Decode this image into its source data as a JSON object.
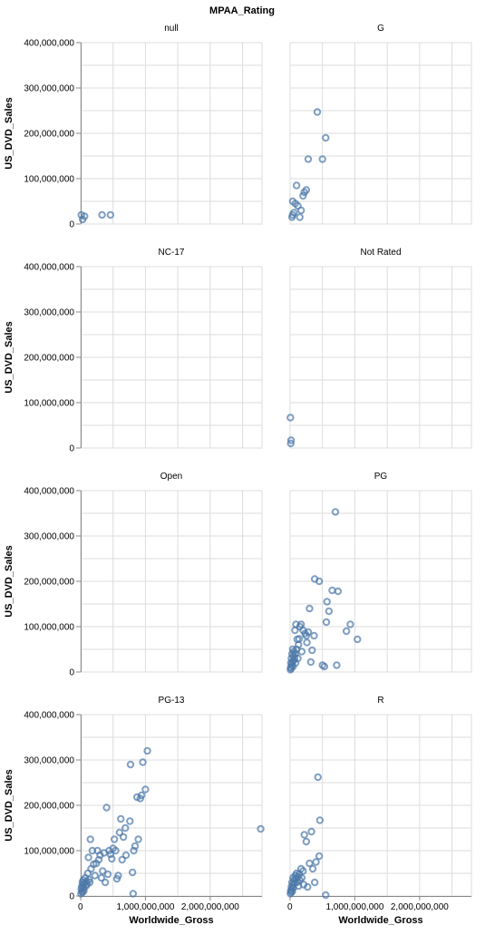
{
  "chart_data": {
    "type": "scatter",
    "title": "MPAA_Rating",
    "xlabel": "Worldwide_Gross",
    "ylabel": "US_DVD_Sales",
    "xlim": [
      0,
      2800000000
    ],
    "ylim": [
      0,
      400000000
    ],
    "x_ticks": [
      0,
      1000000000,
      2000000000
    ],
    "x_tick_labels": [
      "0",
      "1,000,000,000",
      "2,000,000,000"
    ],
    "y_ticks": [
      0,
      100000000,
      200000000,
      300000000,
      400000000
    ],
    "y_tick_labels": [
      "0",
      "100,000,000",
      "200,000,000",
      "300,000,000",
      "400,000,000"
    ],
    "grid": true,
    "point_color": "#4c78a8",
    "facets": [
      {
        "name": "null",
        "points": [
          [
            10000000,
            20000000
          ],
          [
            30000000,
            10000000
          ],
          [
            60000000,
            17000000
          ],
          [
            330000000,
            20000000
          ],
          [
            460000000,
            20000000
          ]
        ]
      },
      {
        "name": "G",
        "points": [
          [
            30000000,
            15000000
          ],
          [
            40000000,
            20000000
          ],
          [
            40000000,
            50000000
          ],
          [
            60000000,
            25000000
          ],
          [
            80000000,
            45000000
          ],
          [
            100000000,
            85000000
          ],
          [
            120000000,
            40000000
          ],
          [
            150000000,
            15000000
          ],
          [
            170000000,
            30000000
          ],
          [
            200000000,
            62000000
          ],
          [
            220000000,
            70000000
          ],
          [
            250000000,
            75000000
          ],
          [
            280000000,
            143000000
          ],
          [
            420000000,
            247000000
          ],
          [
            500000000,
            143000000
          ],
          [
            550000000,
            190000000
          ]
        ]
      },
      {
        "name": "NC-17",
        "points": []
      },
      {
        "name": "Not Rated",
        "points": [
          [
            5000000,
            67000000
          ],
          [
            10000000,
            10000000
          ],
          [
            15000000,
            17000000
          ]
        ]
      },
      {
        "name": "Open",
        "points": []
      },
      {
        "name": "PG",
        "points": [
          [
            5000000,
            5000000
          ],
          [
            10000000,
            10000000
          ],
          [
            12000000,
            20000000
          ],
          [
            15000000,
            8000000
          ],
          [
            20000000,
            30000000
          ],
          [
            25000000,
            15000000
          ],
          [
            30000000,
            40000000
          ],
          [
            35000000,
            22000000
          ],
          [
            40000000,
            50000000
          ],
          [
            45000000,
            12000000
          ],
          [
            50000000,
            35000000
          ],
          [
            55000000,
            25000000
          ],
          [
            60000000,
            45000000
          ],
          [
            70000000,
            30000000
          ],
          [
            75000000,
            92000000
          ],
          [
            80000000,
            40000000
          ],
          [
            85000000,
            20000000
          ],
          [
            90000000,
            105000000
          ],
          [
            100000000,
            50000000
          ],
          [
            110000000,
            72000000
          ],
          [
            120000000,
            30000000
          ],
          [
            130000000,
            60000000
          ],
          [
            140000000,
            73000000
          ],
          [
            150000000,
            100000000
          ],
          [
            170000000,
            105000000
          ],
          [
            180000000,
            45000000
          ],
          [
            200000000,
            92000000
          ],
          [
            230000000,
            85000000
          ],
          [
            250000000,
            80000000
          ],
          [
            260000000,
            65000000
          ],
          [
            280000000,
            88000000
          ],
          [
            300000000,
            140000000
          ],
          [
            320000000,
            22000000
          ],
          [
            340000000,
            48000000
          ],
          [
            370000000,
            80000000
          ],
          [
            380000000,
            205000000
          ],
          [
            450000000,
            200000000
          ],
          [
            500000000,
            15000000
          ],
          [
            530000000,
            12000000
          ],
          [
            560000000,
            110000000
          ],
          [
            570000000,
            155000000
          ],
          [
            600000000,
            134000000
          ],
          [
            650000000,
            180000000
          ],
          [
            700000000,
            353000000
          ],
          [
            720000000,
            15000000
          ],
          [
            740000000,
            178000000
          ],
          [
            870000000,
            90000000
          ],
          [
            930000000,
            105000000
          ],
          [
            1040000000,
            72000000
          ]
        ]
      },
      {
        "name": "PG-13",
        "points": [
          [
            5000000,
            5000000
          ],
          [
            10000000,
            15000000
          ],
          [
            15000000,
            20000000
          ],
          [
            20000000,
            10000000
          ],
          [
            25000000,
            30000000
          ],
          [
            30000000,
            8000000
          ],
          [
            35000000,
            25000000
          ],
          [
            40000000,
            35000000
          ],
          [
            45000000,
            18000000
          ],
          [
            50000000,
            12000000
          ],
          [
            60000000,
            28000000
          ],
          [
            70000000,
            40000000
          ],
          [
            80000000,
            22000000
          ],
          [
            90000000,
            32000000
          ],
          [
            100000000,
            26000000
          ],
          [
            110000000,
            50000000
          ],
          [
            120000000,
            85000000
          ],
          [
            130000000,
            36000000
          ],
          [
            140000000,
            30000000
          ],
          [
            150000000,
            125000000
          ],
          [
            160000000,
            60000000
          ],
          [
            180000000,
            100000000
          ],
          [
            200000000,
            70000000
          ],
          [
            220000000,
            45000000
          ],
          [
            240000000,
            72000000
          ],
          [
            260000000,
            100000000
          ],
          [
            280000000,
            80000000
          ],
          [
            300000000,
            90000000
          ],
          [
            320000000,
            40000000
          ],
          [
            340000000,
            55000000
          ],
          [
            360000000,
            95000000
          ],
          [
            380000000,
            30000000
          ],
          [
            400000000,
            195000000
          ],
          [
            420000000,
            48000000
          ],
          [
            440000000,
            100000000
          ],
          [
            460000000,
            92000000
          ],
          [
            480000000,
            82000000
          ],
          [
            500000000,
            105000000
          ],
          [
            520000000,
            125000000
          ],
          [
            540000000,
            100000000
          ],
          [
            560000000,
            38000000
          ],
          [
            580000000,
            45000000
          ],
          [
            600000000,
            140000000
          ],
          [
            620000000,
            170000000
          ],
          [
            640000000,
            80000000
          ],
          [
            660000000,
            130000000
          ],
          [
            690000000,
            150000000
          ],
          [
            700000000,
            90000000
          ],
          [
            760000000,
            165000000
          ],
          [
            770000000,
            290000000
          ],
          [
            800000000,
            52000000
          ],
          [
            810000000,
            5000000
          ],
          [
            820000000,
            100000000
          ],
          [
            840000000,
            110000000
          ],
          [
            870000000,
            218000000
          ],
          [
            890000000,
            125000000
          ],
          [
            920000000,
            215000000
          ],
          [
            940000000,
            222000000
          ],
          [
            960000000,
            295000000
          ],
          [
            1000000000,
            235000000
          ],
          [
            1030000000,
            320000000
          ],
          [
            2780000000,
            148000000
          ]
        ]
      },
      {
        "name": "R",
        "points": [
          [
            5000000,
            5000000
          ],
          [
            10000000,
            12000000
          ],
          [
            15000000,
            8000000
          ],
          [
            20000000,
            20000000
          ],
          [
            25000000,
            15000000
          ],
          [
            30000000,
            30000000
          ],
          [
            35000000,
            10000000
          ],
          [
            40000000,
            25000000
          ],
          [
            45000000,
            40000000
          ],
          [
            50000000,
            18000000
          ],
          [
            60000000,
            35000000
          ],
          [
            70000000,
            28000000
          ],
          [
            80000000,
            45000000
          ],
          [
            90000000,
            38000000
          ],
          [
            100000000,
            50000000
          ],
          [
            110000000,
            30000000
          ],
          [
            120000000,
            42000000
          ],
          [
            130000000,
            22000000
          ],
          [
            140000000,
            48000000
          ],
          [
            150000000,
            35000000
          ],
          [
            170000000,
            60000000
          ],
          [
            180000000,
            40000000
          ],
          [
            200000000,
            55000000
          ],
          [
            210000000,
            25000000
          ],
          [
            220000000,
            135000000
          ],
          [
            250000000,
            120000000
          ],
          [
            270000000,
            20000000
          ],
          [
            300000000,
            72000000
          ],
          [
            330000000,
            142000000
          ],
          [
            350000000,
            60000000
          ],
          [
            380000000,
            30000000
          ],
          [
            400000000,
            75000000
          ],
          [
            430000000,
            262000000
          ],
          [
            450000000,
            88000000
          ],
          [
            460000000,
            167000000
          ],
          [
            550000000,
            2000000
          ]
        ]
      }
    ]
  }
}
